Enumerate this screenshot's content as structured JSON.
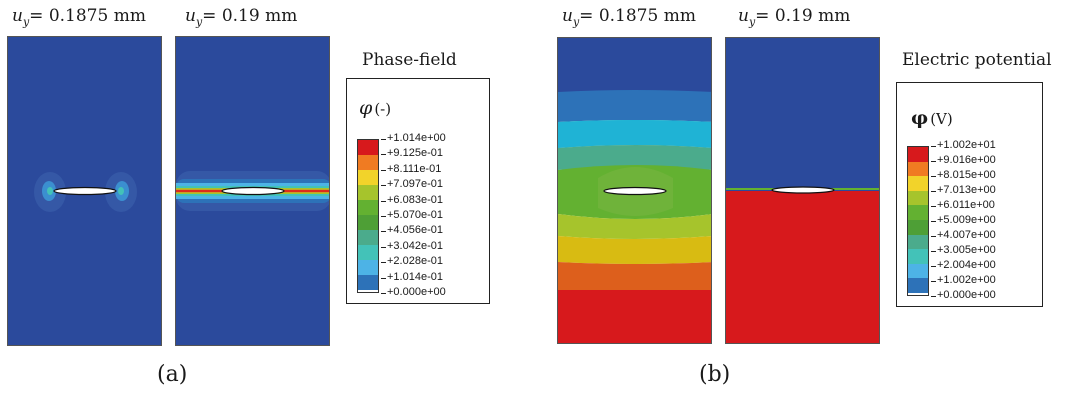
{
  "panel_a": {
    "caption": "(a)",
    "label_left": {
      "u": "u",
      "sub": "y",
      "text": "= 0.1875 mm"
    },
    "label_right": {
      "u": "u",
      "sub": "y",
      "text": "= 0.19 mm"
    },
    "legend_title": "Phase-field",
    "symbol": "φ",
    "unit": "(-)",
    "values": [
      "+1.014e+00",
      "+9.125e-01",
      "+8.111e-01",
      "+7.097e-01",
      "+6.083e-01",
      "+5.070e-01",
      "+4.056e-01",
      "+3.042e-01",
      "+2.028e-01",
      "+1.014e-01",
      "+0.000e+00"
    ],
    "colors": [
      "#d7191c",
      "#f07b22",
      "#f2d32a",
      "#a6c42c",
      "#63b131",
      "#4e9f36",
      "#4bab8c",
      "#43c2b8",
      "#4db3e6",
      "#2d72b8",
      "#2b4a9c"
    ]
  },
  "panel_b": {
    "caption": "(b)",
    "label_left": {
      "u": "u",
      "sub": "y",
      "text": "= 0.1875 mm"
    },
    "label_right": {
      "u": "u",
      "sub": "y",
      "text": "= 0.19 mm"
    },
    "legend_title": "Electric potential",
    "symbol": "φ",
    "unit": "(V)",
    "values": [
      "+1.002e+01",
      "+9.016e+00",
      "+8.015e+00",
      "+7.013e+00",
      "+6.011e+00",
      "+5.009e+00",
      "+4.007e+00",
      "+3.005e+00",
      "+2.004e+00",
      "+1.002e+00",
      "+0.000e+00"
    ],
    "colors": [
      "#d7191c",
      "#f07b22",
      "#f2d32a",
      "#a6c42c",
      "#63b131",
      "#4e9f36",
      "#4bab8c",
      "#43c2b8",
      "#4db3e6",
      "#2d72b8",
      "#2b4a9c"
    ]
  }
}
